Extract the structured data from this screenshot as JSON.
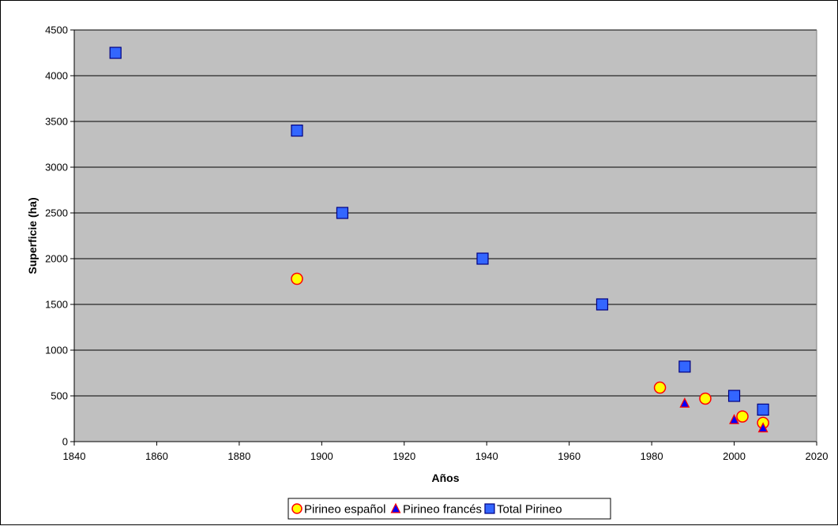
{
  "chart_data": {
    "type": "scatter",
    "title": "",
    "xlabel": "Años",
    "ylabel": "Superficie (ha)",
    "xlim": [
      1840,
      2020
    ],
    "ylim": [
      0,
      4500
    ],
    "x_ticks": [
      1840,
      1860,
      1880,
      1900,
      1920,
      1940,
      1960,
      1980,
      2000,
      2020
    ],
    "y_ticks": [
      0,
      500,
      1000,
      1500,
      2000,
      2500,
      3000,
      3500,
      4000,
      4500
    ],
    "grid": "horizontal",
    "legend_position": "bottom",
    "plot_background": "#C0C0C0",
    "series": [
      {
        "name": "Pirineo español",
        "marker": "circle",
        "fill": "#FFFF00",
        "stroke": "#FF0000",
        "points": [
          [
            1894,
            1780
          ],
          [
            1982,
            590
          ],
          [
            1993,
            470
          ],
          [
            2002,
            275
          ],
          [
            2007,
            205
          ]
        ]
      },
      {
        "name": "Pirineo francés",
        "marker": "triangle",
        "fill": "#0000FF",
        "stroke": "#FF0000",
        "points": [
          [
            1988,
            420
          ],
          [
            2000,
            240
          ],
          [
            2007,
            150
          ]
        ]
      },
      {
        "name": "Total Pirineo",
        "marker": "square",
        "fill": "#3366FF",
        "stroke": "#000080",
        "points": [
          [
            1850,
            4250
          ],
          [
            1894,
            3400
          ],
          [
            1905,
            2500
          ],
          [
            1939,
            2000
          ],
          [
            1968,
            1500
          ],
          [
            1988,
            820
          ],
          [
            2000,
            500
          ],
          [
            2007,
            350
          ]
        ]
      }
    ]
  }
}
